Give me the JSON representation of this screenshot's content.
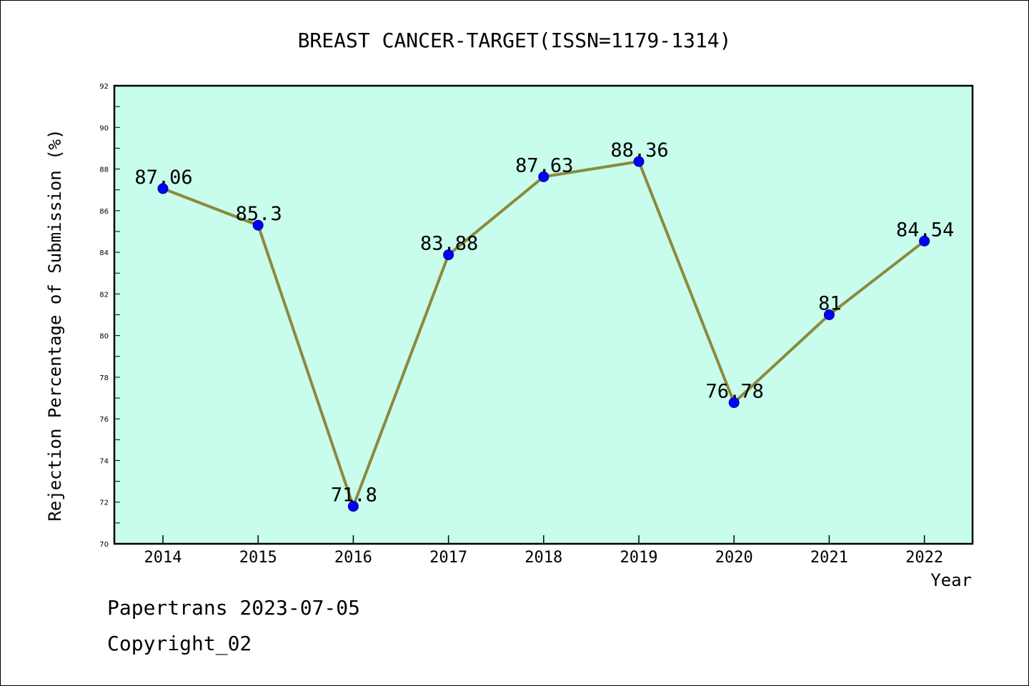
{
  "chart_data": {
    "type": "line",
    "title": "BREAST CANCER-TARGET(ISSN=1179-1314)",
    "xlabel": "Year",
    "ylabel": "Rejection Percentage of Submission (%)",
    "categories": [
      "2014",
      "2015",
      "2016",
      "2017",
      "2018",
      "2019",
      "2020",
      "2021",
      "2022"
    ],
    "values": [
      87.06,
      85.3,
      71.8,
      83.88,
      87.63,
      88.36,
      76.78,
      81,
      84.54
    ],
    "data_labels": [
      "87.06",
      "85.3",
      "71.8",
      "83.88",
      "87.63",
      "88.36",
      "76.78",
      "81",
      "84.54"
    ],
    "ylim": [
      70,
      92
    ],
    "yticks": [
      70,
      72,
      74,
      76,
      78,
      80,
      82,
      84,
      86,
      88,
      90,
      92
    ],
    "grid": false,
    "colors": {
      "plot_background": "#c8fced",
      "line": "#8b8a3b",
      "marker": "#0000ff"
    }
  },
  "footer": {
    "line1": "Papertrans 2023-07-05",
    "line2": "Copyright_02"
  }
}
